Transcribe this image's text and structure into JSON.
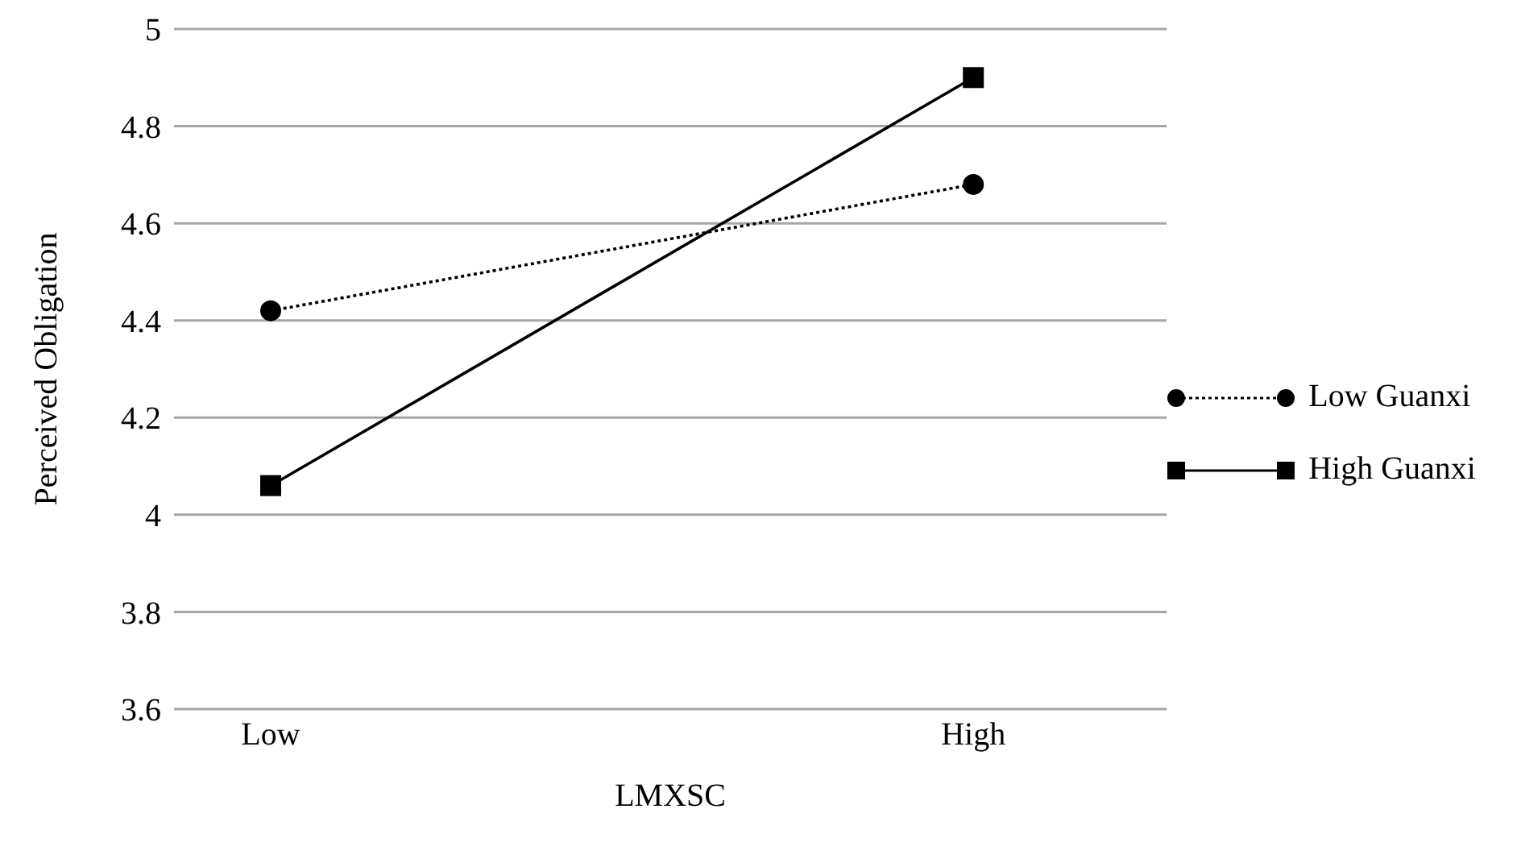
{
  "chart_data": {
    "type": "line",
    "xlabel": "LMXSC",
    "ylabel": "Perceived Obligation",
    "categories": [
      "Low",
      "High"
    ],
    "series": [
      {
        "name": "Low Guanxi",
        "color": "#000000",
        "values": [
          4.42,
          4.68
        ],
        "marker": "circle",
        "line_style": "dotted"
      },
      {
        "name": "High Guanxi",
        "color": "#000000",
        "values": [
          4.06,
          4.9
        ],
        "marker": "square",
        "line_style": "solid"
      }
    ],
    "ylim": [
      3.6,
      5
    ],
    "yticks": [
      3.6,
      3.8,
      4,
      4.2,
      4.4,
      4.6,
      4.8,
      5
    ],
    "grid": "y",
    "legend": "right"
  }
}
